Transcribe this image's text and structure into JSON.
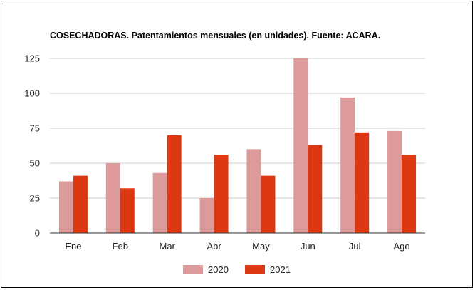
{
  "chart_data": {
    "type": "bar",
    "title": "COSECHADORAS. Patentamientos mensuales (en unidades). Fuente: ACARA.",
    "categories": [
      "Ene",
      "Feb",
      "Mar",
      "Abr",
      "May",
      "Jun",
      "Jul",
      "Ago"
    ],
    "series": [
      {
        "name": "2020",
        "color": "#dc9a9b",
        "values": [
          37,
          50,
          43,
          25,
          60,
          125,
          97,
          73
        ]
      },
      {
        "name": "2021",
        "color": "#dc3912",
        "values": [
          41,
          32,
          70,
          56,
          41,
          63,
          72,
          56
        ]
      }
    ],
    "yticks": [
      "0",
      "25",
      "50",
      "75",
      "100",
      "125"
    ],
    "ylim": [
      0,
      125
    ],
    "grid": true,
    "legend": "bottom"
  }
}
